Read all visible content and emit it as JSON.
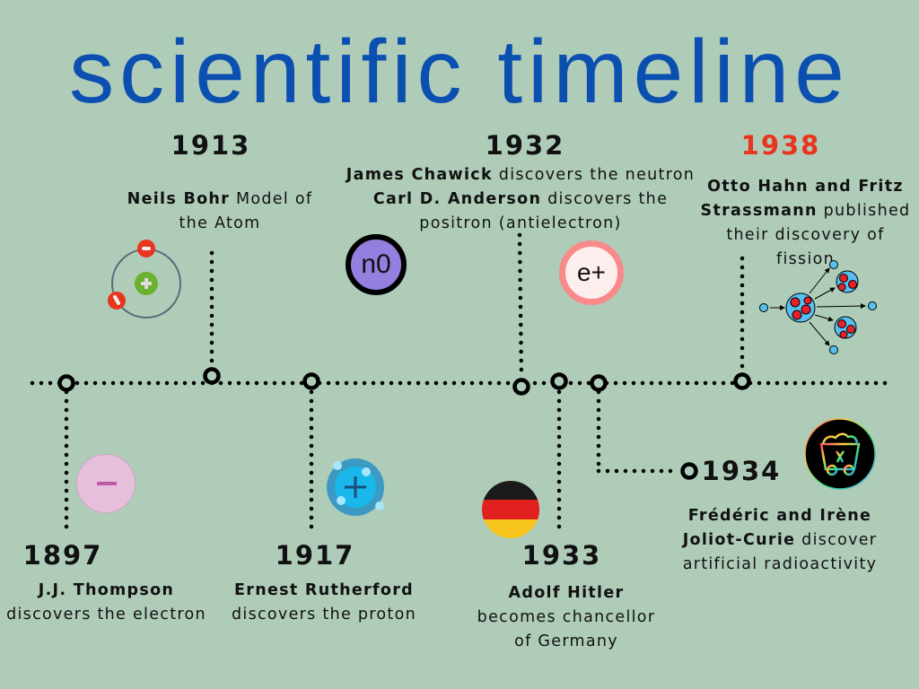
{
  "title": "scientific timeline",
  "colors": {
    "background": "#afccb9",
    "title": "#0b4fb0",
    "highlight_year": "#e8361e"
  },
  "events": [
    {
      "year": "1897",
      "parts": [
        {
          "bold": "J.J. Thompson"
        },
        {
          "text": " discovers the electron"
        }
      ],
      "icon": "electron-icon"
    },
    {
      "year": "1913",
      "parts": [
        {
          "bold": "Neils Bohr"
        },
        {
          "text": " Model of the Atom"
        }
      ],
      "icon": "atom-icon"
    },
    {
      "year": "1917",
      "parts": [
        {
          "bold": "Ernest Rutherford"
        },
        {
          "text": " discovers the proton"
        }
      ],
      "icon": "proton-icon"
    },
    {
      "year": "1932",
      "parts": [
        {
          "bold": "James Chawick"
        },
        {
          "text": " discovers the neutron"
        },
        {
          "bold": "Carl D. Anderson"
        },
        {
          "text": " discovers the positron (antielectron)"
        }
      ],
      "icon": "neutron-icon",
      "icon_labels": {
        "neutron": "n0",
        "positron": "e+"
      }
    },
    {
      "year": "1933",
      "parts": [
        {
          "bold": "Adolf Hitler"
        },
        {
          "text": " becomes chancellor of Germany"
        }
      ],
      "icon": "german-flag-icon"
    },
    {
      "year": "1934",
      "parts": [
        {
          "bold": "Frédéric and Irène Joliot-Curie"
        },
        {
          "text": " discover artificial radioactivity"
        }
      ],
      "icon": "minecart-icon"
    },
    {
      "year": "1938",
      "parts": [
        {
          "bold": "Otto Hahn and Fritz Strassmann"
        },
        {
          "text": " published their discovery of fission"
        }
      ],
      "icon": "fission-icon"
    }
  ]
}
